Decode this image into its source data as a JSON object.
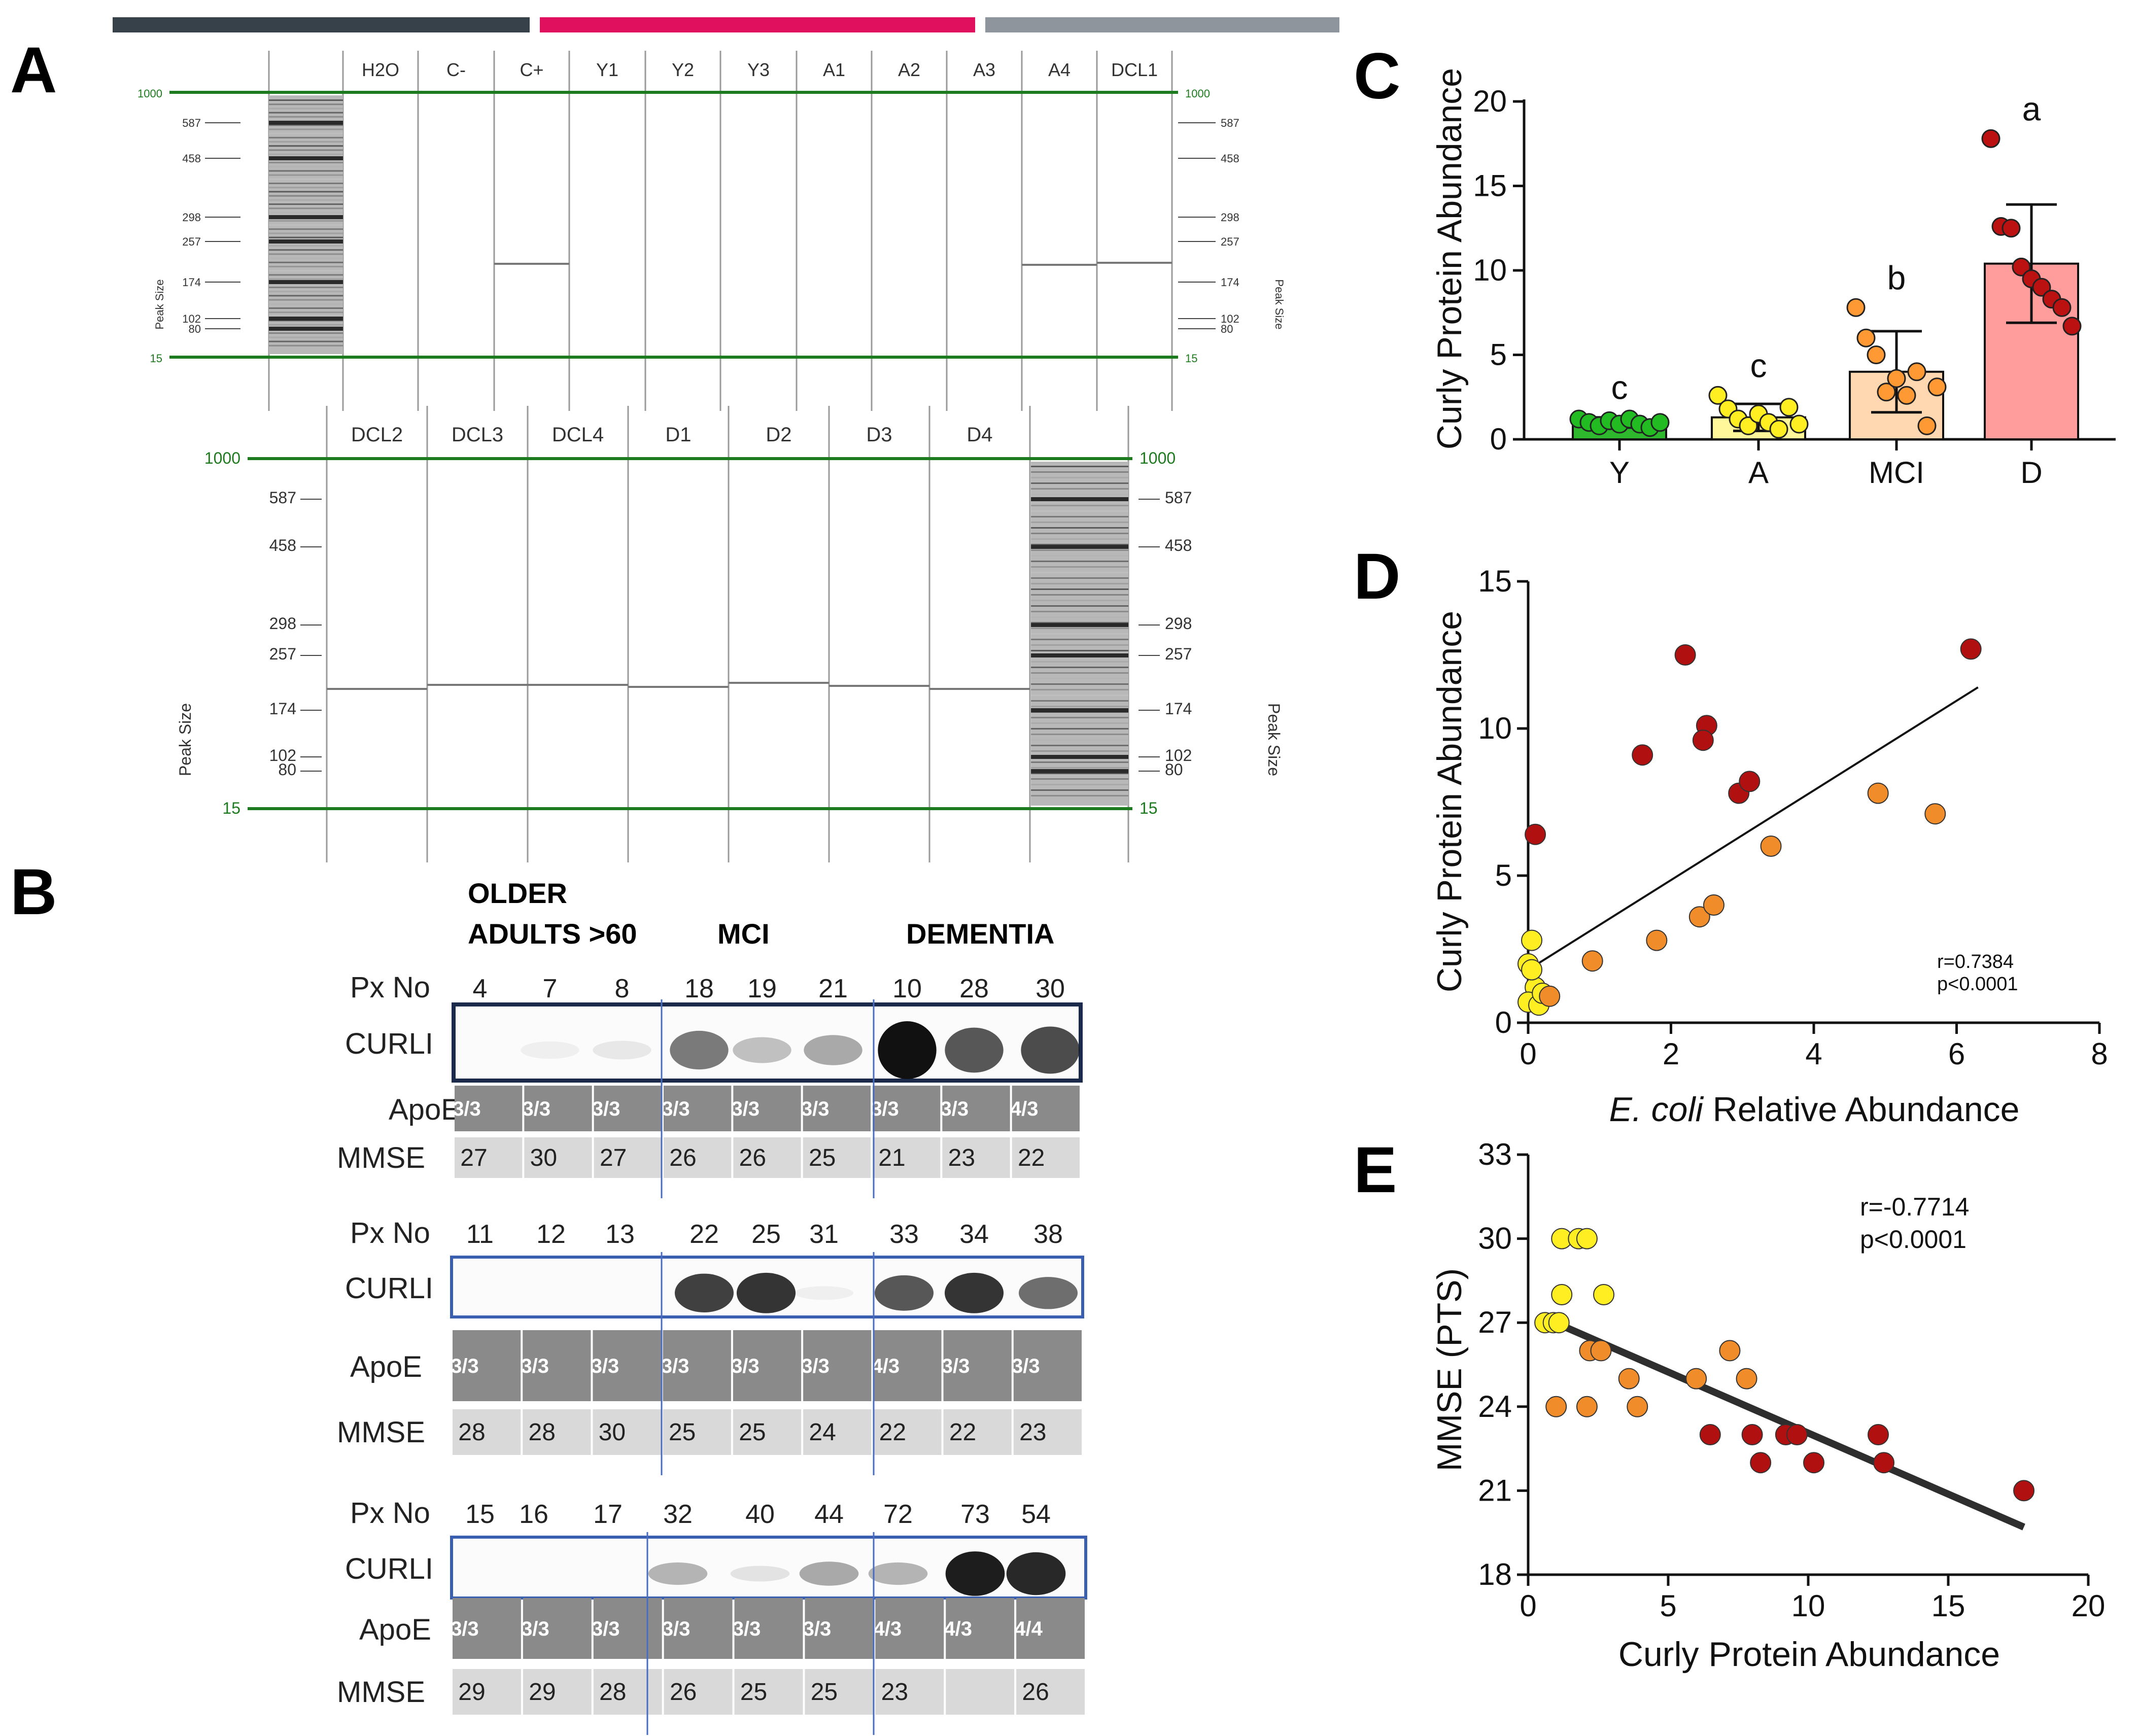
{
  "figure": {
    "panel_letters": {
      "a": "A",
      "b": "B",
      "c": "C",
      "d": "D",
      "e": "E"
    },
    "top_bar_colors": [
      "#37414a",
      "#e0105e",
      "#8e959d"
    ]
  },
  "panel_a": {
    "upper": {
      "lanes": [
        "H2O",
        "C-",
        "C+",
        "Y1",
        "Y2",
        "Y3",
        "A1",
        "A2",
        "A3",
        "A4",
        "DCL1"
      ],
      "ladder_labels": [
        "587",
        "458",
        "298",
        "257",
        "174",
        "102",
        "80"
      ],
      "marker_top": "1000",
      "marker_bottom": "15",
      "axis_label": "Peak Size"
    },
    "lower": {
      "lanes": [
        "DCL2",
        "DCL3",
        "DCL4",
        "D1",
        "D2",
        "D3",
        "D4"
      ],
      "ladder_labels": [
        "587",
        "458",
        "298",
        "257",
        "174",
        "102",
        "80"
      ],
      "marker_top": "1000",
      "marker_bottom": "15",
      "axis_label": "Peak Size"
    }
  },
  "panel_b": {
    "group_headers": {
      "older_line1": "OLDER",
      "older_line2": "ADULTS >60",
      "mci": "MCI",
      "dementia": "DEMENTIA"
    },
    "row_labels": {
      "px": "Px No",
      "curli": "CURLI",
      "apoe": "ApoE",
      "mmse": "MMSE"
    },
    "blots": [
      {
        "px": [
          "4",
          "7",
          "8",
          "18",
          "19",
          "21",
          "10",
          "28",
          "30"
        ],
        "apoe": [
          "3/3",
          "3/3",
          "3/3",
          "3/3",
          "3/3",
          "3/3",
          "3/3",
          "3/3",
          "4/3"
        ],
        "mmse": [
          "27",
          "30",
          "27",
          "26",
          "26",
          "25",
          "21",
          "23",
          "22"
        ]
      },
      {
        "px": [
          "11",
          "12",
          "13",
          "22",
          "25",
          "31",
          "33",
          "34",
          "38"
        ],
        "apoe": [
          "3/3",
          "3/3",
          "3/3",
          "3/3",
          "3/3",
          "3/3",
          "4/3",
          "3/3",
          "3/3"
        ],
        "mmse": [
          "28",
          "28",
          "30",
          "25",
          "25",
          "24",
          "22",
          "22",
          "23"
        ]
      },
      {
        "px": [
          "15",
          "16",
          "17",
          "32",
          "40",
          "44",
          "72",
          "73",
          "54"
        ],
        "apoe": [
          "3/3",
          "3/3",
          "3/3",
          "3/3",
          "3/3",
          "3/3",
          "4/3",
          "4/3",
          "4/4"
        ],
        "mmse": [
          "29",
          "29",
          "28",
          "26",
          "25",
          "25",
          "23",
          "",
          "26"
        ]
      }
    ]
  },
  "chart_data": [
    {
      "panel": "C",
      "type": "bar",
      "title": "",
      "xlabel": "",
      "ylabel": "Curly Protein Abundance",
      "ylim": [
        0,
        20
      ],
      "yticks": [
        "0",
        "5",
        "10",
        "15",
        "20"
      ],
      "categories": [
        "Y",
        "A",
        "MCI",
        "D"
      ],
      "values": [
        1.0,
        1.3,
        4.0,
        10.4
      ],
      "errors": [
        0.3,
        0.8,
        2.4,
        3.5
      ],
      "significance": [
        "c",
        "c",
        "b",
        "a"
      ],
      "bar_fill": [
        "#2eb82e",
        "#fff79a",
        "#ffd7b0",
        "#ff9d9d"
      ],
      "point_fill": [
        "#22bb22",
        "#ffee22",
        "#ff9933",
        "#bb1111"
      ],
      "points": [
        [
          1.2,
          1.0,
          0.8,
          1.1,
          0.9,
          1.2,
          0.9,
          0.7,
          1.0
        ],
        [
          2.6,
          1.8,
          1.2,
          0.8,
          1.5,
          1.0,
          0.6,
          1.9,
          0.9
        ],
        [
          7.8,
          6.0,
          5.0,
          2.8,
          3.6,
          2.6,
          4.0,
          0.8,
          3.1
        ],
        [
          17.8,
          12.6,
          12.5,
          10.2,
          9.5,
          9.0,
          8.3,
          7.8,
          6.7
        ]
      ]
    },
    {
      "panel": "D",
      "type": "scatter",
      "xlabel_italic": "E. coli",
      "xlabel_rest": " Relative Abundance",
      "ylabel": "Curly Protein Abundance",
      "xlim": [
        0,
        8
      ],
      "ylim": [
        0,
        15
      ],
      "xticks": [
        "0",
        "2",
        "4",
        "6",
        "8"
      ],
      "yticks": [
        "0",
        "5",
        "10",
        "15"
      ],
      "stat_r": "r=0.7384",
      "stat_p": "p<0.0001",
      "fit": {
        "x1": 0,
        "y1": 1.8,
        "x2": 6.3,
        "y2": 11.4
      },
      "points": [
        {
          "x": 0.05,
          "y": 2.8,
          "g": "A"
        },
        {
          "x": 0.0,
          "y": 2.0,
          "g": "A"
        },
        {
          "x": 0.1,
          "y": 1.2,
          "g": "A"
        },
        {
          "x": 0.0,
          "y": 0.7,
          "g": "A"
        },
        {
          "x": 0.15,
          "y": 0.6,
          "g": "A"
        },
        {
          "x": 0.2,
          "y": 1.0,
          "g": "A"
        },
        {
          "x": 0.05,
          "y": 1.8,
          "g": "A"
        },
        {
          "x": 0.3,
          "y": 0.9,
          "g": "MCI"
        },
        {
          "x": 0.9,
          "y": 2.1,
          "g": "MCI"
        },
        {
          "x": 1.8,
          "y": 2.8,
          "g": "MCI"
        },
        {
          "x": 2.4,
          "y": 3.6,
          "g": "MCI"
        },
        {
          "x": 2.6,
          "y": 4.0,
          "g": "MCI"
        },
        {
          "x": 3.4,
          "y": 6.0,
          "g": "MCI"
        },
        {
          "x": 4.9,
          "y": 7.8,
          "g": "MCI"
        },
        {
          "x": 5.7,
          "y": 7.1,
          "g": "MCI"
        },
        {
          "x": 0.1,
          "y": 6.4,
          "g": "D"
        },
        {
          "x": 1.6,
          "y": 9.1,
          "g": "D"
        },
        {
          "x": 2.2,
          "y": 12.5,
          "g": "D"
        },
        {
          "x": 2.5,
          "y": 10.1,
          "g": "D"
        },
        {
          "x": 2.45,
          "y": 9.6,
          "g": "D"
        },
        {
          "x": 2.95,
          "y": 7.8,
          "g": "D"
        },
        {
          "x": 3.1,
          "y": 8.2,
          "g": "D"
        },
        {
          "x": 6.2,
          "y": 12.7,
          "g": "D"
        }
      ],
      "colors": {
        "A": "#ffee22",
        "MCI": "#f08c2a",
        "D": "#b01010"
      }
    },
    {
      "panel": "E",
      "type": "scatter",
      "xlabel": "Curly Protein Abundance",
      "ylabel": "MMSE (PTS)",
      "xlim": [
        0,
        20
      ],
      "ylim": [
        18,
        33
      ],
      "xticks": [
        "0",
        "5",
        "10",
        "15",
        "20"
      ],
      "yticks": [
        "18",
        "21",
        "24",
        "27",
        "30",
        "33"
      ],
      "stat_r": "r=-0.7714",
      "stat_p": "p<0.0001",
      "fit": {
        "x1": 0.5,
        "y1": 27.2,
        "x2": 17.7,
        "y2": 19.7
      },
      "points": [
        {
          "x": 1.2,
          "y": 30,
          "g": "A"
        },
        {
          "x": 1.8,
          "y": 30,
          "g": "A"
        },
        {
          "x": 2.1,
          "y": 30,
          "g": "A"
        },
        {
          "x": 1.2,
          "y": 28,
          "g": "A"
        },
        {
          "x": 2.7,
          "y": 28,
          "g": "A"
        },
        {
          "x": 0.6,
          "y": 27,
          "g": "A"
        },
        {
          "x": 0.9,
          "y": 27,
          "g": "A"
        },
        {
          "x": 1.1,
          "y": 27,
          "g": "A"
        },
        {
          "x": 1.0,
          "y": 24,
          "g": "MCI"
        },
        {
          "x": 2.1,
          "y": 24,
          "g": "MCI"
        },
        {
          "x": 2.2,
          "y": 26,
          "g": "MCI"
        },
        {
          "x": 2.6,
          "y": 26,
          "g": "MCI"
        },
        {
          "x": 3.6,
          "y": 25,
          "g": "MCI"
        },
        {
          "x": 3.9,
          "y": 24,
          "g": "MCI"
        },
        {
          "x": 6.0,
          "y": 25,
          "g": "MCI"
        },
        {
          "x": 7.2,
          "y": 26,
          "g": "MCI"
        },
        {
          "x": 7.8,
          "y": 25,
          "g": "MCI"
        },
        {
          "x": 6.5,
          "y": 23,
          "g": "D"
        },
        {
          "x": 8.0,
          "y": 23,
          "g": "D"
        },
        {
          "x": 8.3,
          "y": 22,
          "g": "D"
        },
        {
          "x": 9.2,
          "y": 23,
          "g": "D"
        },
        {
          "x": 9.6,
          "y": 23,
          "g": "D"
        },
        {
          "x": 10.2,
          "y": 22,
          "g": "D"
        },
        {
          "x": 12.5,
          "y": 23,
          "g": "D"
        },
        {
          "x": 12.7,
          "y": 22,
          "g": "D"
        },
        {
          "x": 17.7,
          "y": 21,
          "g": "D"
        }
      ],
      "colors": {
        "A": "#ffee22",
        "MCI": "#f08c2a",
        "D": "#b01010"
      }
    }
  ]
}
